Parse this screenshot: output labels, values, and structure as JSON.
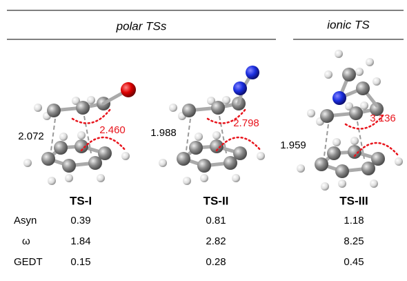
{
  "header": {
    "groups": [
      "polar TSs",
      "ionic TS"
    ]
  },
  "structures": [
    {
      "label": "TS-I",
      "distance": "2.072",
      "angle_distance": "2.460"
    },
    {
      "label": "TS-II",
      "distance": "1.988",
      "angle_distance": "2.798"
    },
    {
      "label": "TS-III",
      "distance": "1.959",
      "angle_distance": "3.136"
    }
  ],
  "table": {
    "rows": [
      [
        "Asyn",
        "0.39",
        "0.81",
        "1.18"
      ],
      [
        "ω",
        "1.84",
        "2.82",
        "8.25"
      ],
      [
        "GEDT",
        "0.15",
        "0.28",
        "0.45"
      ]
    ]
  }
}
